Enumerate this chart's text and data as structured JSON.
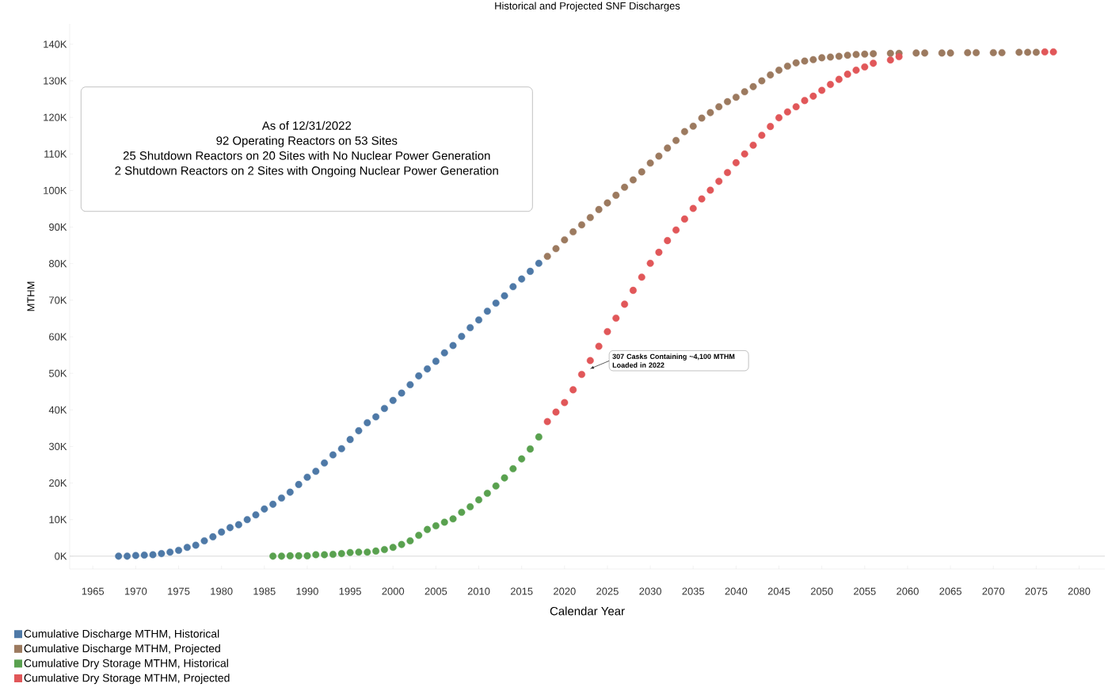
{
  "chart_data": {
    "type": "scatter",
    "title": "Historical and Projected SNF Discharges",
    "xlabel": "Calendar Year",
    "ylabel": "MTHM",
    "marker": "circle",
    "legend": "bottom left",
    "xlim": [
      1962.3,
      2083
    ],
    "ylim": [
      -3500,
      145600
    ],
    "xticks": [
      1965,
      1970,
      1975,
      1980,
      1985,
      1990,
      1995,
      2000,
      2005,
      2010,
      2015,
      2020,
      2025,
      2030,
      2035,
      2040,
      2045,
      2050,
      2055,
      2060,
      2065,
      2070,
      2075,
      2080
    ],
    "yticks": [
      {
        "value": 0,
        "label": "0K"
      },
      {
        "value": 10000,
        "label": "10K"
      },
      {
        "value": 20000,
        "label": "20K"
      },
      {
        "value": 30000,
        "label": "30K"
      },
      {
        "value": 40000,
        "label": "40K"
      },
      {
        "value": 50000,
        "label": "50K"
      },
      {
        "value": 60000,
        "label": "60K"
      },
      {
        "value": 70000,
        "label": "70K"
      },
      {
        "value": 80000,
        "label": "80K"
      },
      {
        "value": 90000,
        "label": "90K"
      },
      {
        "value": 100000,
        "label": "100K"
      },
      {
        "value": 110000,
        "label": "110K"
      },
      {
        "value": 120000,
        "label": "120K"
      },
      {
        "value": 130000,
        "label": "130K"
      },
      {
        "value": 140000,
        "label": "140K"
      }
    ],
    "ref_lines": [
      {
        "axis": "y",
        "value": 0,
        "color": "#d9d9d9"
      }
    ],
    "annotations": [
      "As of 12/31/2022",
      "92 Operating Reactors on 53 Sites",
      "25 Shutdown Reactors on 20 Sites with No Nuclear Power Generation",
      "2 Shutdown Reactors on 2 Sites with Ongoing Nuclear Power Generation",
      "307 Casks Containing ~4,100 MTHM Loaded in 2022"
    ],
    "series": [
      {
        "name": "Cumulative Discharge MTHM, Historical",
        "color": "#4e79a7",
        "x": [
          1968,
          1969,
          1970,
          1971,
          1972,
          1973,
          1974,
          1975,
          1976,
          1977,
          1978,
          1979,
          1980,
          1981,
          1982,
          1983,
          1984,
          1985,
          1986,
          1987,
          1988,
          1989,
          1990,
          1991,
          1992,
          1993,
          1994,
          1995,
          1996,
          1997,
          1998,
          1999,
          2000,
          2001,
          2002,
          2003,
          2004,
          2005,
          2006,
          2007,
          2008,
          2009,
          2010,
          2011,
          2012,
          2013,
          2014,
          2015,
          2016,
          2017
        ],
        "values": [
          0,
          0,
          200,
          300,
          400,
          700,
          1100,
          1600,
          2400,
          3000,
          4200,
          5300,
          6600,
          7800,
          8600,
          10000,
          11300,
          12900,
          14200,
          15900,
          17500,
          19600,
          21600,
          23200,
          25500,
          27700,
          29400,
          31900,
          34300,
          36500,
          38100,
          40400,
          42600,
          44600,
          46900,
          49300,
          51200,
          53300,
          55600,
          57600,
          60100,
          62500,
          64600,
          67000,
          69200,
          71200,
          73700,
          75800,
          77900,
          80100
        ]
      },
      {
        "name": "Cumulative Discharge MTHM, Projected",
        "color": "#9c7a5f",
        "x": [
          2018,
          2019,
          2020,
          2021,
          2022,
          2023,
          2024,
          2025,
          2026,
          2027,
          2028,
          2029,
          2030,
          2031,
          2032,
          2033,
          2034,
          2035,
          2036,
          2037,
          2038,
          2039,
          2040,
          2041,
          2042,
          2043,
          2044,
          2045,
          2046,
          2047,
          2048,
          2049,
          2050,
          2051,
          2052,
          2053,
          2054,
          2055,
          2056,
          2058,
          2059,
          2061,
          2062,
          2064,
          2065,
          2067,
          2068,
          2070,
          2071,
          2073,
          2074,
          2075
        ],
        "values": [
          82000,
          84100,
          86500,
          88700,
          90600,
          92600,
          94800,
          96600,
          98700,
          100900,
          102900,
          105100,
          107500,
          109400,
          111600,
          113700,
          116100,
          117600,
          119800,
          121300,
          122900,
          124300,
          125500,
          127000,
          128400,
          130000,
          131600,
          132900,
          134000,
          134900,
          135400,
          135800,
          136300,
          136500,
          136700,
          137000,
          137200,
          137300,
          137400,
          137500,
          137500,
          137600,
          137600,
          137600,
          137600,
          137700,
          137700,
          137700,
          137700,
          137800,
          137800,
          137800
        ]
      },
      {
        "name": "Cumulative Dry Storage MTHM, Historical",
        "color": "#59a14f",
        "x": [
          1986,
          1987,
          1988,
          1989,
          1990,
          1991,
          1992,
          1993,
          1994,
          1995,
          1996,
          1997,
          1998,
          1999,
          2000,
          2001,
          2002,
          2003,
          2004,
          2005,
          2006,
          2007,
          2008,
          2009,
          2010,
          2011,
          2012,
          2013,
          2014,
          2015,
          2016,
          2017
        ],
        "values": [
          0,
          0,
          100,
          100,
          100,
          400,
          400,
          500,
          700,
          1000,
          1100,
          1100,
          1400,
          1800,
          2400,
          3200,
          4200,
          5700,
          7300,
          8300,
          9300,
          10200,
          12000,
          13500,
          15400,
          17200,
          19200,
          21400,
          23900,
          26600,
          29300,
          32600
        ]
      },
      {
        "name": "Cumulative Dry Storage MTHM, Projected",
        "color": "#e15759",
        "x": [
          2018,
          2019,
          2020,
          2021,
          2022,
          2023,
          2024,
          2025,
          2026,
          2027,
          2028,
          2029,
          2030,
          2031,
          2032,
          2033,
          2034,
          2035,
          2036,
          2037,
          2038,
          2039,
          2040,
          2041,
          2042,
          2043,
          2044,
          2045,
          2046,
          2047,
          2048,
          2049,
          2050,
          2051,
          2052,
          2053,
          2054,
          2055,
          2056,
          2058,
          2059,
          2076,
          2077
        ],
        "values": [
          36800,
          39400,
          42000,
          45500,
          49700,
          53500,
          57400,
          61400,
          65100,
          68900,
          72700,
          76300,
          80100,
          83100,
          86300,
          89200,
          92200,
          95100,
          97700,
          100100,
          102500,
          104900,
          107600,
          110000,
          112400,
          115100,
          117500,
          119900,
          121500,
          122900,
          124600,
          125800,
          127400,
          129000,
          130400,
          131800,
          132900,
          133800,
          134800,
          135700,
          136600,
          137900,
          137900
        ]
      }
    ]
  }
}
